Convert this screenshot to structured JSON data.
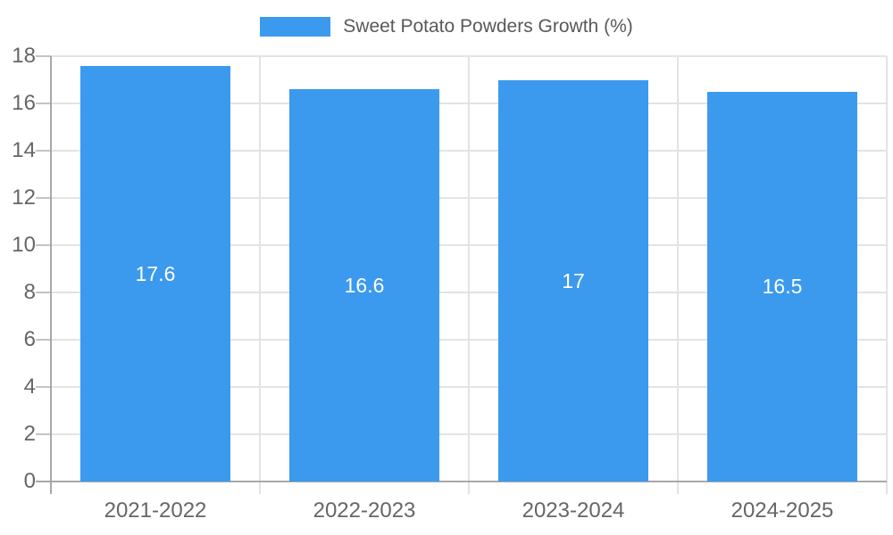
{
  "legend": {
    "label": "Sweet Potato Powders Growth (%)",
    "swatch_color": "#3b9aee"
  },
  "chart_data": {
    "type": "bar",
    "title": "",
    "xlabel": "",
    "ylabel": "",
    "categories": [
      "2021-2022",
      "2022-2023",
      "2023-2024",
      "2024-2025"
    ],
    "series": [
      {
        "name": "Sweet Potato Powders Growth (%)",
        "values": [
          17.6,
          16.6,
          17,
          16.5
        ],
        "data_labels": [
          "17.6",
          "16.6",
          "17",
          "16.5"
        ]
      }
    ],
    "ylim": [
      0,
      18
    ],
    "ytick_step": 2,
    "ytick_labels": [
      "0",
      "2",
      "4",
      "6",
      "8",
      "10",
      "12",
      "14",
      "16",
      "18"
    ],
    "grid": true,
    "legend_position": "top",
    "colors": {
      "bar": "#3b9aee",
      "bar_label": "#ffffff",
      "gridline": "#e3e3e3",
      "axis_line": "#a8a8a8",
      "tick": "#c4c4c4",
      "axis_text": "#666666",
      "legend_text": "#595959",
      "background": "#ffffff"
    }
  }
}
